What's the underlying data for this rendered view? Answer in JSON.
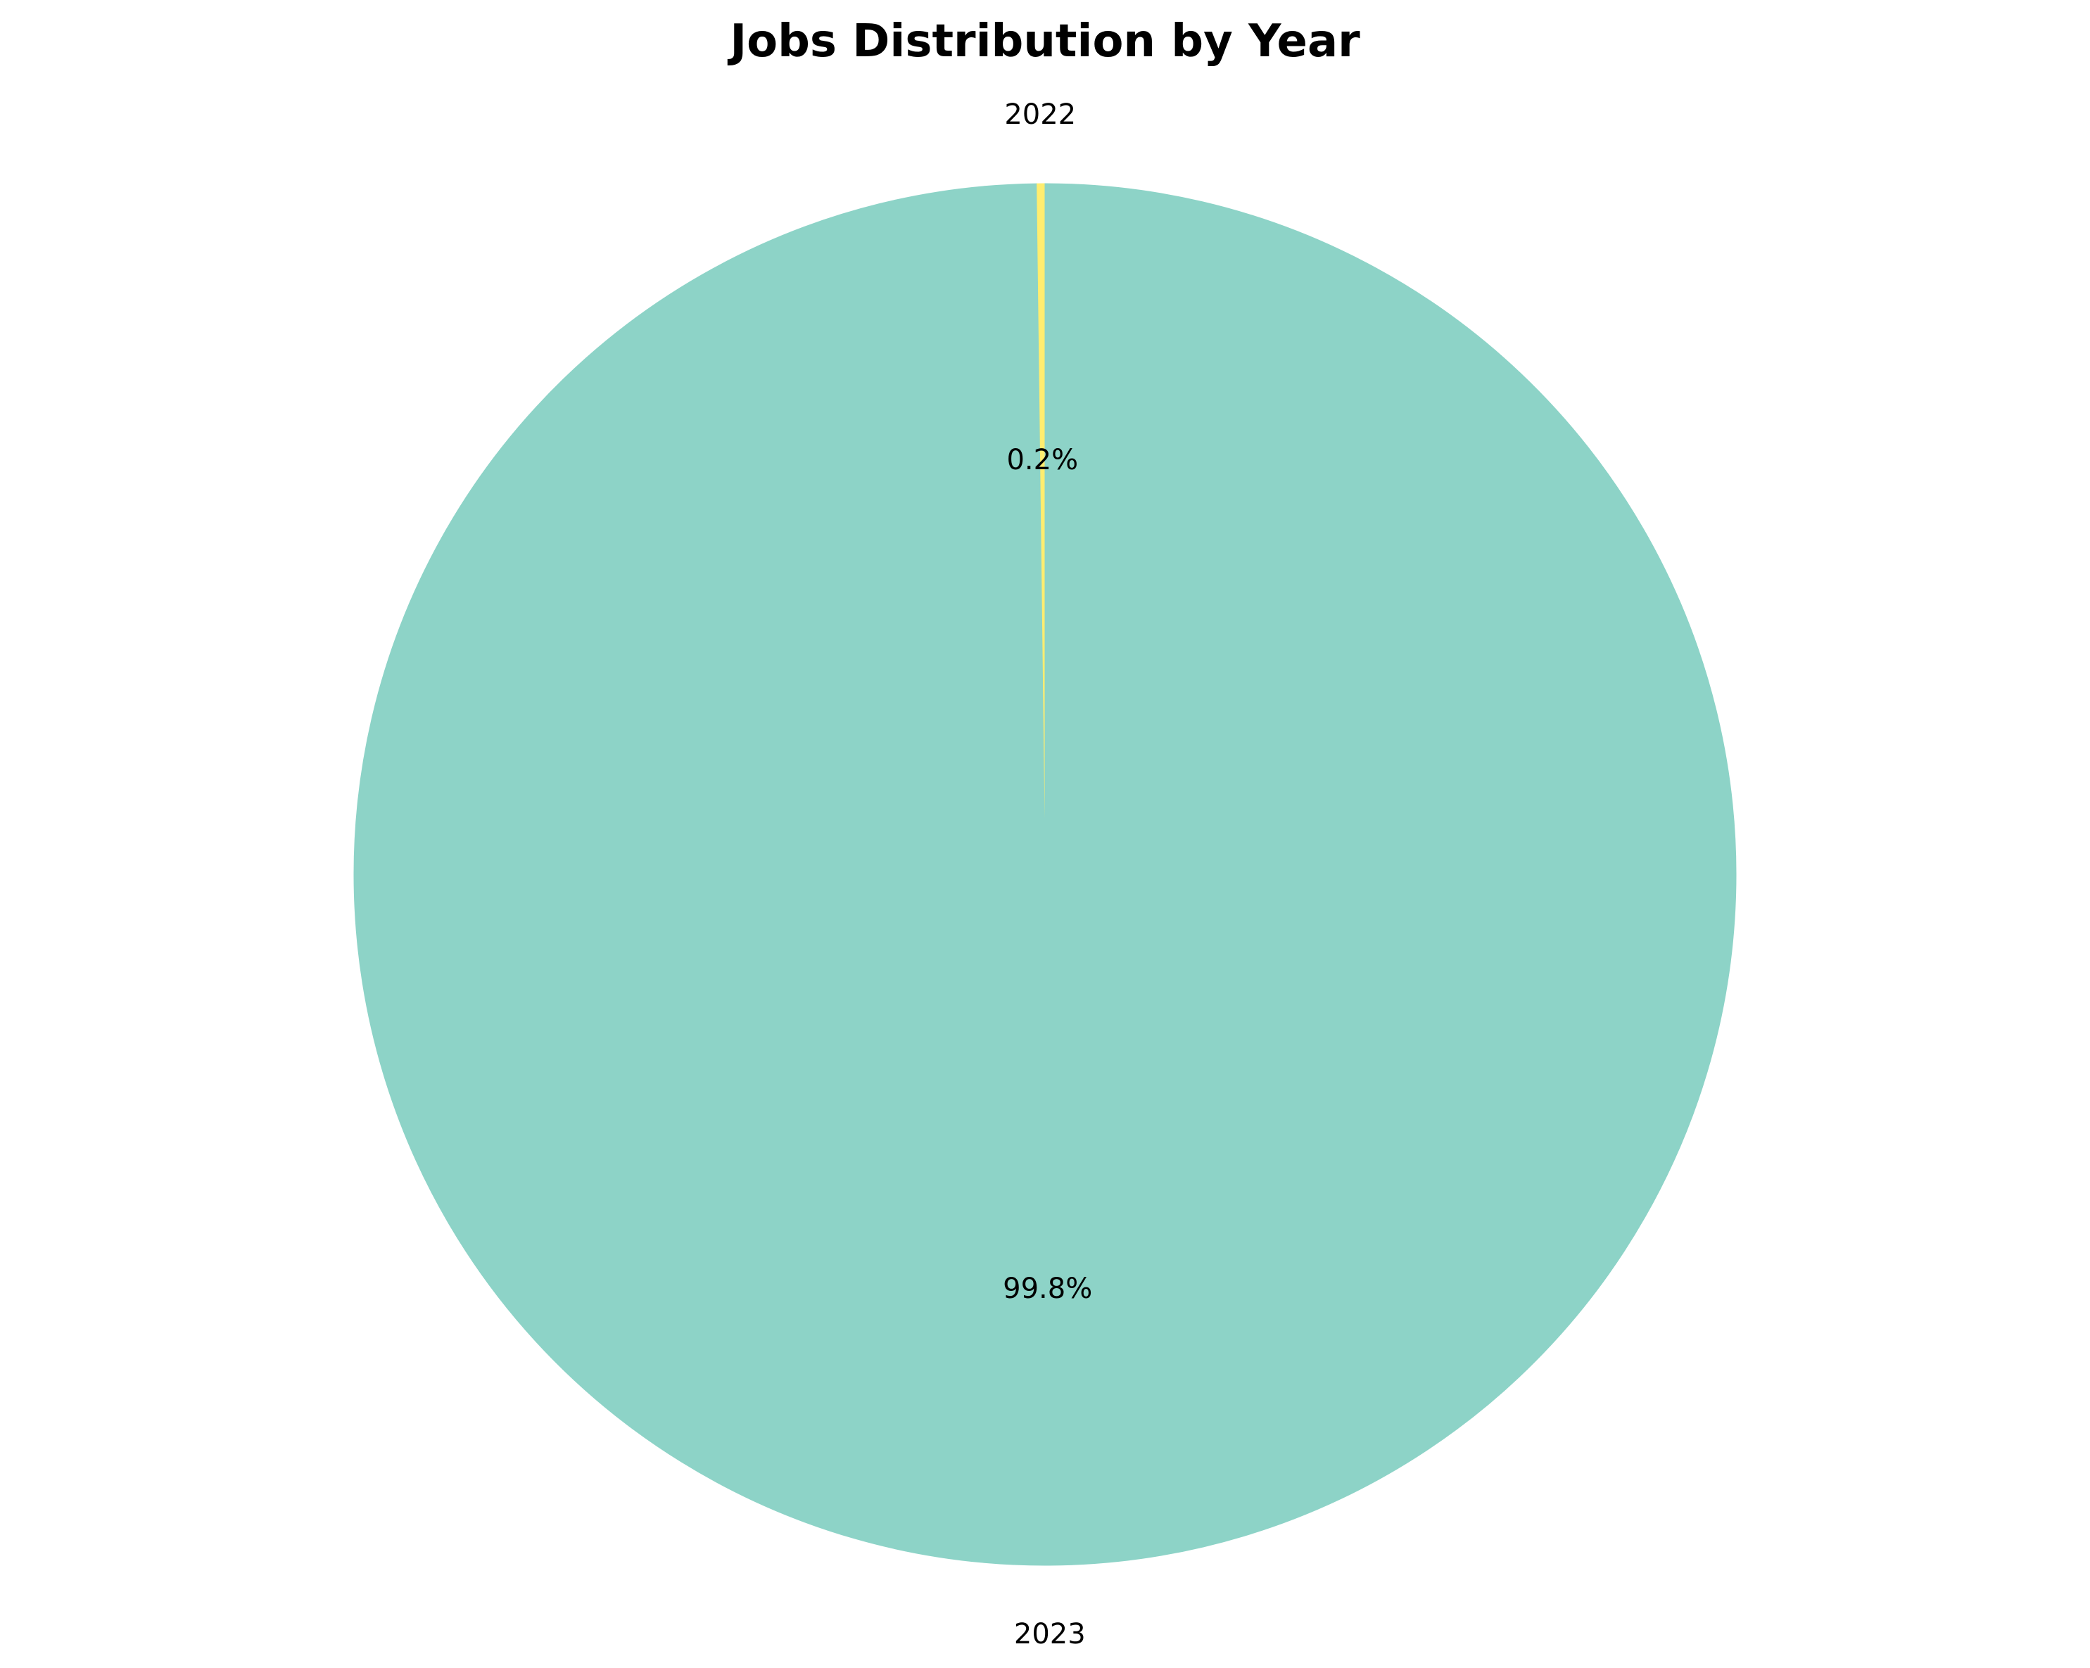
{
  "chart_data": {
    "type": "pie",
    "title": "Jobs Distribution by Year",
    "slices": [
      {
        "label": "2022",
        "percent": 0.2,
        "display": "0.2%",
        "color": "#ffed6f"
      },
      {
        "label": "2023",
        "percent": 99.8,
        "display": "99.8%",
        "color": "#8dd3c7"
      }
    ],
    "start_angle_deg": 90,
    "direction": "counterclockwise",
    "legend": "none"
  }
}
